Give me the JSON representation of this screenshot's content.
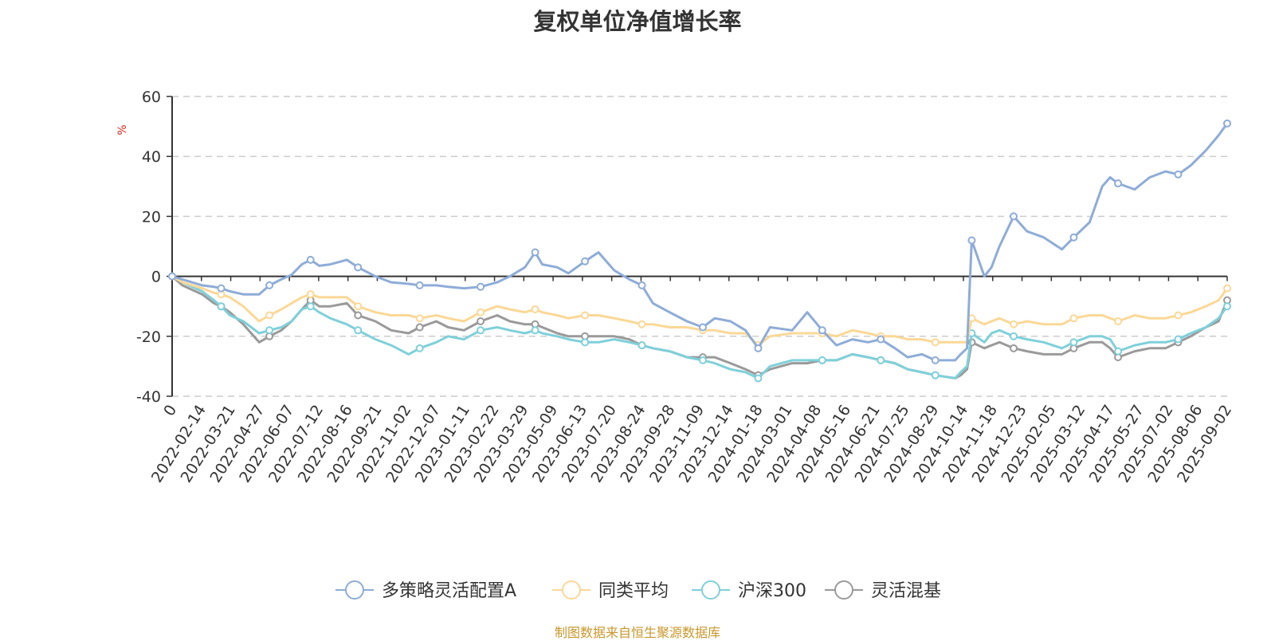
{
  "title": "复权单位净值增长率",
  "source_note": "制图数据来自恒生聚源数据库",
  "colors": {
    "多策略灵活配置A": "#8eacd8",
    "同类平均": "#fbd896",
    "沪深300": "#7fd0da",
    "灵活混基": "#9a9a9a"
  },
  "chart_data": {
    "type": "line",
    "title": "复权单位净值增长率",
    "ylabel": "%",
    "ylim": [
      -40,
      60
    ],
    "yticks": [
      60,
      40,
      20,
      0,
      -20,
      -40
    ],
    "grid": true,
    "legend_position": "bottom-center",
    "x_tick_labels": [
      "0",
      "2022-02-14",
      "2022-03-21",
      "2022-04-27",
      "2022-06-07",
      "2022-07-12",
      "2022-08-16",
      "2022-09-21",
      "2022-11-02",
      "2022-12-07",
      "2023-01-11",
      "2023-02-22",
      "2023-03-29",
      "2023-05-09",
      "2023-06-13",
      "2023-07-20",
      "2023-08-24",
      "2023-09-28",
      "2023-11-09",
      "2023-12-14",
      "2024-01-18",
      "2024-03-01",
      "2024-04-08",
      "2024-05-16",
      "2024-06-21",
      "2024-07-25",
      "2024-08-29",
      "2024-10-14",
      "2024-11-18",
      "2024-12-23",
      "2025-02-05",
      "2025-03-12",
      "2025-04-17",
      "2025-05-27",
      "2025-07-02",
      "2025-08-06",
      "2025-09-02"
    ],
    "x": [
      "2022-01-07",
      "2022-01-20",
      "2022-02-14",
      "2022-03-01",
      "2022-03-10",
      "2022-03-21",
      "2022-04-07",
      "2022-04-27",
      "2022-05-10",
      "2022-05-25",
      "2022-06-07",
      "2022-06-20",
      "2022-07-01",
      "2022-07-12",
      "2022-07-26",
      "2022-08-16",
      "2022-08-30",
      "2022-09-21",
      "2022-10-11",
      "2022-11-02",
      "2022-11-16",
      "2022-12-07",
      "2022-12-22",
      "2023-01-11",
      "2023-02-01",
      "2023-02-22",
      "2023-03-10",
      "2023-03-29",
      "2023-04-11",
      "2023-04-20",
      "2023-05-09",
      "2023-05-23",
      "2023-06-13",
      "2023-06-30",
      "2023-07-20",
      "2023-08-08",
      "2023-08-24",
      "2023-09-07",
      "2023-09-28",
      "2023-10-20",
      "2023-11-09",
      "2023-11-24",
      "2023-12-14",
      "2024-01-02",
      "2024-01-18",
      "2024-02-02",
      "2024-03-01",
      "2024-03-20",
      "2024-04-08",
      "2024-04-26",
      "2024-05-16",
      "2024-06-05",
      "2024-06-21",
      "2024-07-09",
      "2024-07-25",
      "2024-08-12",
      "2024-08-29",
      "2024-09-23",
      "2024-09-30",
      "2024-10-08",
      "2024-10-14",
      "2024-10-30",
      "2024-11-08",
      "2024-11-18",
      "2024-12-06",
      "2024-12-23",
      "2025-01-13",
      "2025-02-05",
      "2025-02-20",
      "2025-03-12",
      "2025-03-28",
      "2025-04-07",
      "2025-04-17",
      "2025-05-08",
      "2025-05-27",
      "2025-06-16",
      "2025-07-02",
      "2025-07-18",
      "2025-08-06",
      "2025-08-22",
      "2025-09-02"
    ],
    "series": [
      {
        "name": "多策略灵活配置A",
        "values": [
          0,
          -1,
          -3,
          -3.5,
          -4,
          -5,
          -6,
          -6,
          -3,
          -1,
          0.5,
          4,
          5.5,
          3.5,
          4,
          5.5,
          3,
          0,
          -2,
          -2.5,
          -3,
          -3,
          -3.5,
          -4,
          -3.5,
          -2,
          0,
          3,
          8,
          4,
          3,
          1,
          5,
          8,
          2,
          -1,
          -3,
          -9,
          -12,
          -15,
          -17,
          -14,
          -15,
          -18,
          -24,
          -17,
          -18,
          -12,
          -18,
          -23,
          -21,
          -22,
          -21,
          -24,
          -27,
          -26,
          -28,
          -28,
          -26,
          -24,
          12,
          0,
          3,
          10,
          20,
          15,
          13,
          9,
          13,
          18,
          30,
          33,
          31,
          29,
          33,
          35,
          34,
          37,
          42,
          47,
          51
        ]
      },
      {
        "name": "同类平均",
        "values": [
          0,
          -2,
          -4,
          -5.5,
          -6,
          -7,
          -10,
          -15,
          -13,
          -11,
          -9,
          -7,
          -6,
          -7,
          -7,
          -7,
          -10,
          -12,
          -13,
          -13,
          -14,
          -13,
          -14,
          -15,
          -12,
          -10,
          -11,
          -12,
          -11,
          -12,
          -13,
          -14,
          -13,
          -13,
          -14,
          -15,
          -16,
          -16,
          -17,
          -17,
          -18,
          -18,
          -19,
          -19,
          -23,
          -20,
          -19,
          -19,
          -19,
          -20,
          -18,
          -19,
          -20,
          -20,
          -21,
          -21,
          -22,
          -22,
          -22,
          -22,
          -14,
          -16,
          -15,
          -14,
          -16,
          -15,
          -16,
          -16,
          -14,
          -13,
          -13,
          -14,
          -15,
          -13,
          -14,
          -14,
          -13,
          -12,
          -10,
          -8,
          -4
        ]
      },
      {
        "name": "沪深300",
        "values": [
          0,
          -2,
          -5,
          -8,
          -10,
          -13,
          -15,
          -19,
          -18,
          -17,
          -15,
          -11,
          -10,
          -12,
          -14,
          -16,
          -18,
          -21,
          -23,
          -26,
          -24,
          -22,
          -20,
          -21,
          -18,
          -17,
          -18,
          -19,
          -18,
          -19,
          -20,
          -21,
          -22,
          -22,
          -21,
          -22,
          -23,
          -24,
          -25,
          -27,
          -28,
          -29,
          -31,
          -32,
          -34,
          -30,
          -28,
          -28,
          -28,
          -28,
          -26,
          -27,
          -28,
          -29,
          -31,
          -32,
          -33,
          -34,
          -32,
          -30,
          -19,
          -22,
          -19,
          -18,
          -20,
          -21,
          -22,
          -24,
          -22,
          -20,
          -20,
          -21,
          -25,
          -23,
          -22,
          -22,
          -21,
          -19,
          -17,
          -14,
          -10
        ]
      },
      {
        "name": "灵活混基",
        "values": [
          0,
          -3,
          -6,
          -9,
          -10,
          -12,
          -16,
          -22,
          -20,
          -18,
          -15,
          -11,
          -8,
          -10,
          -10,
          -9,
          -13,
          -15,
          -18,
          -19,
          -17,
          -15,
          -17,
          -18,
          -15,
          -13,
          -15,
          -16,
          -16,
          -17,
          -19,
          -20,
          -20,
          -20,
          -20,
          -21,
          -23,
          -24,
          -25,
          -27,
          -27,
          -27,
          -29,
          -31,
          -33,
          -31,
          -29,
          -29,
          -28,
          -28,
          -26,
          -27,
          -28,
          -29,
          -31,
          -32,
          -33,
          -34,
          -33,
          -31,
          -22,
          -24,
          -23,
          -22,
          -24,
          -25,
          -26,
          -26,
          -24,
          -22,
          -22,
          -24,
          -27,
          -25,
          -24,
          -24,
          -22,
          -20,
          -17,
          -15,
          -8
        ]
      }
    ]
  }
}
